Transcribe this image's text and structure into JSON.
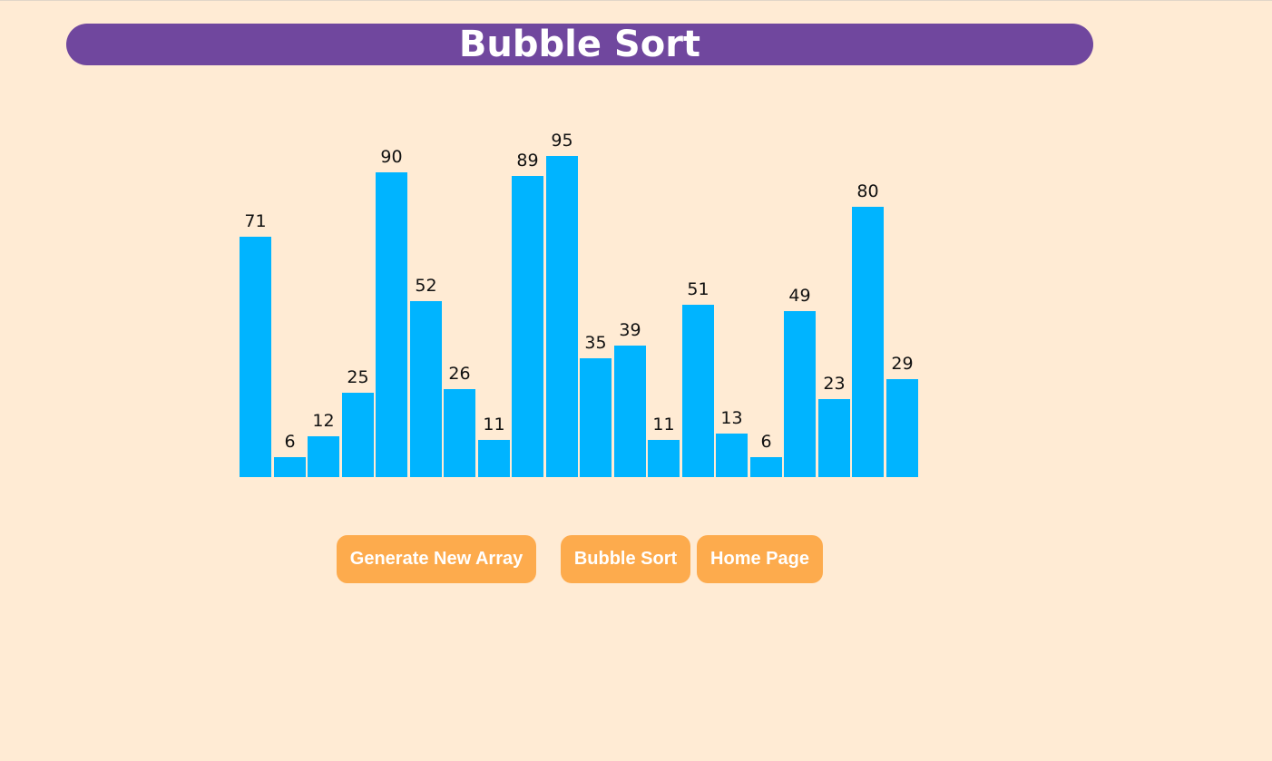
{
  "header": {
    "title": "Bubble Sort"
  },
  "chart_data": {
    "type": "bar",
    "values": [
      71,
      6,
      12,
      25,
      90,
      52,
      26,
      11,
      89,
      95,
      35,
      39,
      11,
      51,
      13,
      6,
      49,
      23,
      80,
      29
    ],
    "bar_color": "#00b4ff"
  },
  "controls": {
    "generate_label": "Generate New Array",
    "sort_label": "Bubble Sort",
    "home_label": "Home Page"
  },
  "colors": {
    "background": "#ffebd4",
    "title_bar": "#70479e",
    "button": "#fdab4d"
  }
}
